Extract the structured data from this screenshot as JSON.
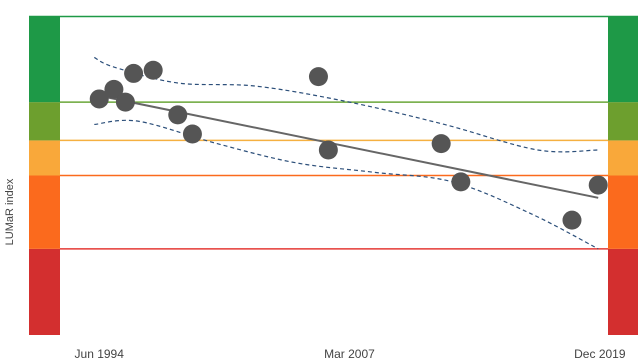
{
  "chart_data": {
    "type": "scatter",
    "title": "",
    "xlabel": "",
    "ylabel": "LUMaR index",
    "x_ticks": [
      "Jun 1994",
      "Mar 2007",
      "Dec 2019"
    ],
    "xlim": [
      "1992-06-01",
      "2020-05-01"
    ],
    "ylim": [
      0,
      1
    ],
    "grid": false,
    "legend": "none",
    "condition_bands": [
      {
        "from": 0.0,
        "to": 0.27,
        "color": "#d32f2f"
      },
      {
        "from": 0.27,
        "to": 0.5,
        "color": "#fb6a1d"
      },
      {
        "from": 0.5,
        "to": 0.61,
        "color": "#f9a83a"
      },
      {
        "from": 0.61,
        "to": 0.73,
        "color": "#6d9f2e"
      },
      {
        "from": 0.73,
        "to": 1.0,
        "color": "#1e9947"
      }
    ],
    "threshold_lines": [
      {
        "value": 0.27,
        "color": "#e53935"
      },
      {
        "value": 0.5,
        "color": "#fb6a1d"
      },
      {
        "value": 0.61,
        "color": "#f5b041"
      },
      {
        "value": 0.73,
        "color": "#6aa638"
      }
    ],
    "points": [
      {
        "x": "1994-06-01",
        "y": 0.74
      },
      {
        "x": "1995-03-01",
        "y": 0.77
      },
      {
        "x": "1995-10-01",
        "y": 0.73
      },
      {
        "x": "1996-03-01",
        "y": 0.82
      },
      {
        "x": "1997-03-01",
        "y": 0.83
      },
      {
        "x": "1998-06-01",
        "y": 0.69
      },
      {
        "x": "1999-03-01",
        "y": 0.63
      },
      {
        "x": "2005-08-01",
        "y": 0.81
      },
      {
        "x": "2006-02-01",
        "y": 0.58
      },
      {
        "x": "2011-11-01",
        "y": 0.6
      },
      {
        "x": "2012-11-01",
        "y": 0.48
      },
      {
        "x": "2018-07-01",
        "y": 0.36
      },
      {
        "x": "2019-11-01",
        "y": 0.47
      }
    ],
    "trend_line": [
      {
        "x": "1994-06-01",
        "y": 0.75
      },
      {
        "x": "2019-11-01",
        "y": 0.43
      }
    ],
    "confidence_upper": [
      {
        "x": "1994-03-01",
        "y": 0.87
      },
      {
        "x": "1995-03-01",
        "y": 0.84
      },
      {
        "x": "1998-06-01",
        "y": 0.79
      },
      {
        "x": "2002-06-01",
        "y": 0.78
      },
      {
        "x": "2007-03-01",
        "y": 0.73
      },
      {
        "x": "2012-01-01",
        "y": 0.66
      },
      {
        "x": "2016-10-01",
        "y": 0.58
      },
      {
        "x": "2019-11-01",
        "y": 0.58
      }
    ],
    "confidence_lower": [
      {
        "x": "1994-03-01",
        "y": 0.66
      },
      {
        "x": "1996-06-01",
        "y": 0.67
      },
      {
        "x": "2000-06-01",
        "y": 0.6
      },
      {
        "x": "2004-06-01",
        "y": 0.54
      },
      {
        "x": "2008-06-01",
        "y": 0.51
      },
      {
        "x": "2012-06-01",
        "y": 0.48
      },
      {
        "x": "2016-06-01",
        "y": 0.38
      },
      {
        "x": "2019-11-01",
        "y": 0.27
      }
    ],
    "marker_color": "#555555",
    "trend_color": "#666666",
    "ci_color": "#2c4f7a",
    "top_line_color": "#1e9947"
  }
}
